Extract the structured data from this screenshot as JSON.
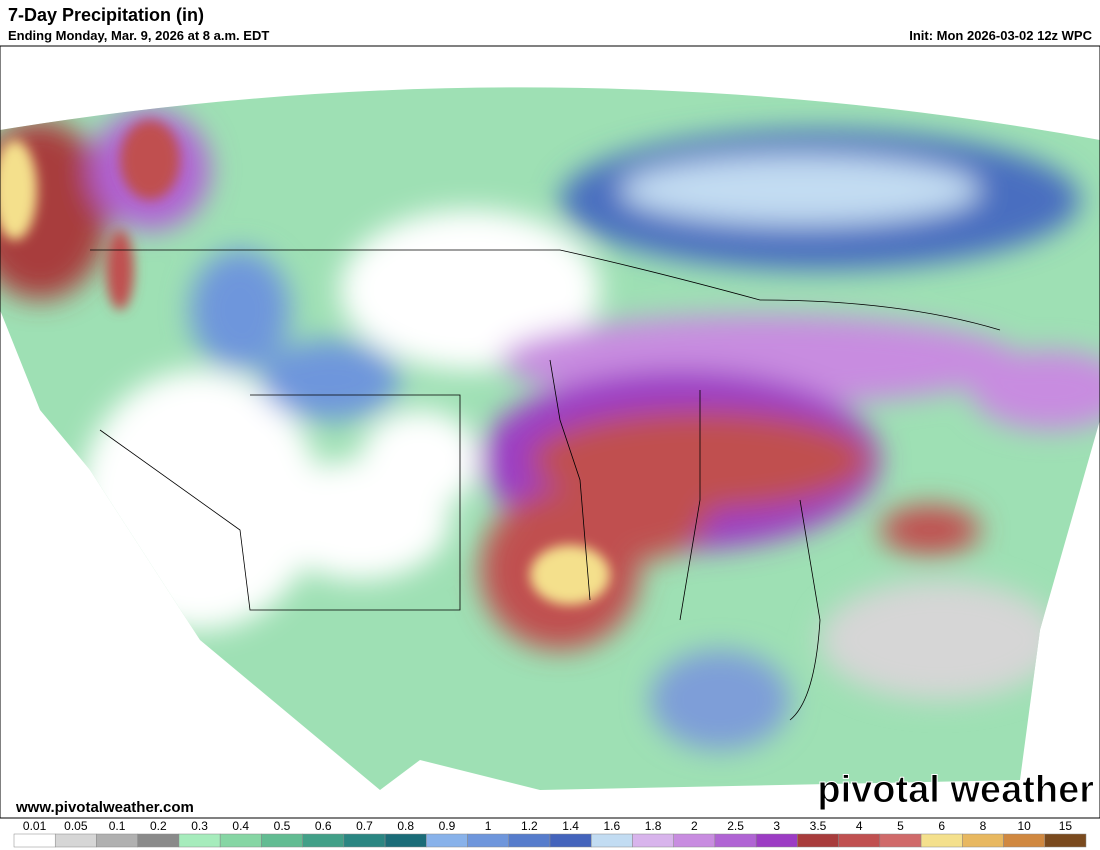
{
  "header": {
    "title": "7-Day Precipitation (in)",
    "subtitle": "Ending Monday, Mar. 9, 2026 at 8 a.m. EDT",
    "init": "Init: Mon 2026-03-02 12z WPC"
  },
  "footer": {
    "website": "www.pivotalweather.com",
    "watermark": "pivotal weather"
  },
  "colorbar": {
    "labels": [
      "0.01",
      "0.05",
      "0.1",
      "0.2",
      "0.3",
      "0.4",
      "0.5",
      "0.6",
      "0.7",
      "0.8",
      "0.9",
      "1",
      "1.2",
      "1.4",
      "1.6",
      "1.8",
      "2",
      "2.5",
      "3",
      "3.5",
      "4",
      "5",
      "6",
      "8",
      "10",
      "15"
    ],
    "colors": [
      "#ffffff",
      "#d6d6d6",
      "#b0b0b0",
      "#8a8a8a",
      "#a6ecbc",
      "#86d6a4",
      "#62bc92",
      "#42a088",
      "#2a8682",
      "#1a6c78",
      "#88b2ea",
      "#6e96dc",
      "#567ccc",
      "#4464bc",
      "#c2dcf2",
      "#d8b4ec",
      "#c88ce0",
      "#b064d4",
      "#9c3cc4",
      "#a83c3c",
      "#c05050",
      "#d06a6a",
      "#f4e08c",
      "#e8b860",
      "#d08840",
      "#7a4a1e"
    ]
  }
}
